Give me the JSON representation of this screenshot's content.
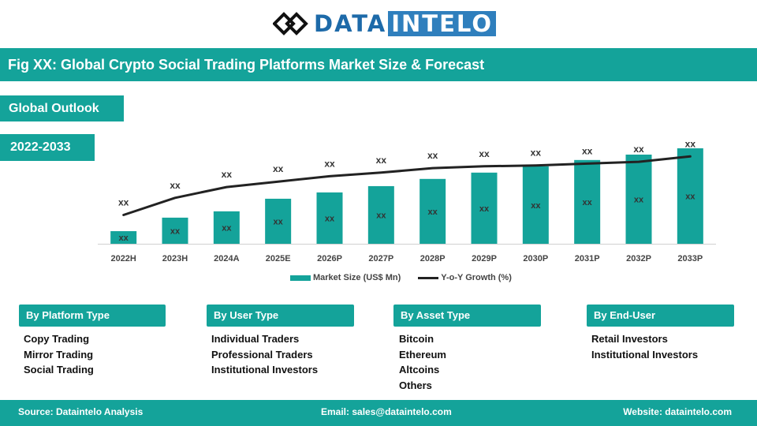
{
  "logo": {
    "part1": "DATA",
    "part2": "INTELO"
  },
  "title": "Fig XX: Global Crypto Social Trading Platforms Market Size & Forecast",
  "tags": {
    "outlook": "Global Outlook",
    "years": "2022-2033"
  },
  "chart_data": {
    "type": "bar",
    "categories": [
      "2022H",
      "2023H",
      "2024A",
      "2025E",
      "2026P",
      "2027P",
      "2028P",
      "2029P",
      "2030P",
      "2031P",
      "2032P",
      "2033P"
    ],
    "series": [
      {
        "name": "Market Size (US$ Mn)",
        "type": "bar",
        "values": [
          1.4,
          2.9,
          3.6,
          5.0,
          5.7,
          6.4,
          7.2,
          7.9,
          8.6,
          9.3,
          9.9,
          10.6
        ],
        "labels": [
          "xx",
          "xx",
          "xx",
          "xx",
          "xx",
          "xx",
          "xx",
          "xx",
          "xx",
          "xx",
          "xx",
          "xx"
        ]
      },
      {
        "name": "Y-o-Y Growth (%)",
        "type": "line",
        "values": [
          3.2,
          5.1,
          6.3,
          6.9,
          7.5,
          7.9,
          8.4,
          8.6,
          8.7,
          8.9,
          9.1,
          9.7
        ],
        "labels": [
          "xx",
          "xx",
          "xx",
          "xx",
          "xx",
          "xx",
          "xx",
          "xx",
          "xx",
          "xx",
          "xx",
          "xx"
        ]
      }
    ],
    "ylim": [
      0,
      12
    ],
    "legend": "bottom-center",
    "grid": false,
    "colors": {
      "bar": "#14a39a",
      "line": "#222222"
    }
  },
  "segments": [
    {
      "title": "By Platform Type",
      "items": [
        "Copy Trading",
        "Mirror Trading",
        "Social Trading"
      ]
    },
    {
      "title": "By User Type",
      "items": [
        "Individual Traders",
        "Professional Traders",
        "Institutional Investors"
      ]
    },
    {
      "title": "By Asset Type",
      "items": [
        "Bitcoin",
        "Ethereum",
        "Altcoins",
        "Others"
      ]
    },
    {
      "title": "By End-User",
      "items": [
        "Retail Investors",
        "Institutional Investors"
      ]
    }
  ],
  "footer": {
    "source": "Source: Dataintelo  Analysis",
    "email": "Email: sales@dataintelo.com",
    "website": "Website: dataintelo.com"
  }
}
